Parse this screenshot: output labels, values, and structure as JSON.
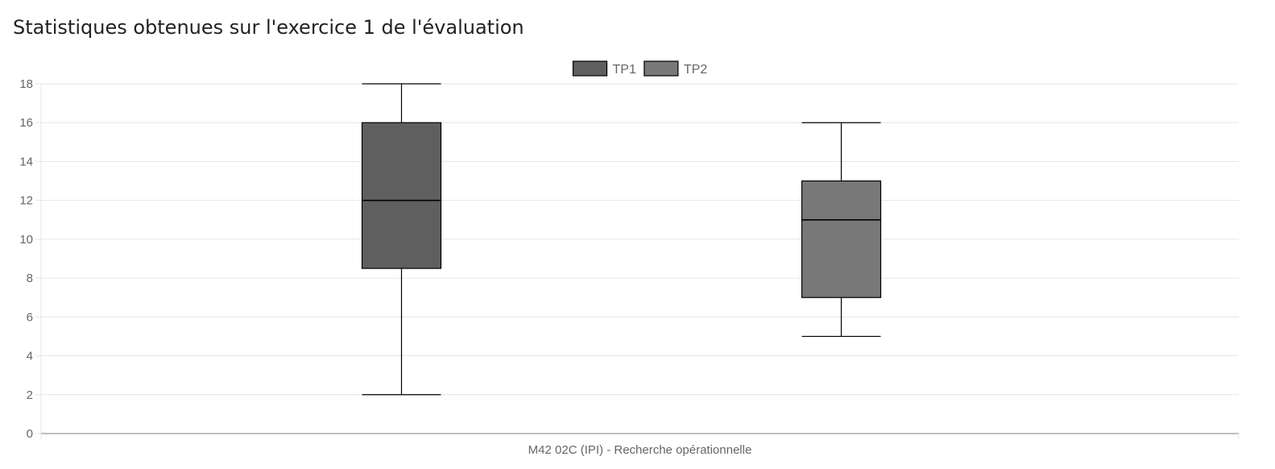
{
  "page": {
    "title": "Statistiques obtenues sur l'exercice 1 de l'évaluation"
  },
  "chart_data": {
    "type": "boxplot",
    "title": "",
    "xlabel": "",
    "ylabel": "",
    "categories": [
      "M42 02C (IPI) - Recherche opérationnelle"
    ],
    "ylim": [
      0,
      18
    ],
    "yticks": [
      0,
      2,
      4,
      6,
      8,
      10,
      12,
      14,
      16,
      18
    ],
    "grid": true,
    "legend_position": "top-center",
    "series": [
      {
        "name": "TP1",
        "color": "#5f5f5f",
        "min": 2,
        "q1": 8.5,
        "median": 12,
        "q3": 16,
        "max": 18
      },
      {
        "name": "TP2",
        "color": "#787878",
        "min": 5,
        "q1": 7,
        "median": 11,
        "q3": 13,
        "max": 16
      }
    ],
    "colors": {
      "grid": "#e6e6e6",
      "axis": "#999999",
      "stroke": "#000000",
      "text": "#666666"
    }
  }
}
